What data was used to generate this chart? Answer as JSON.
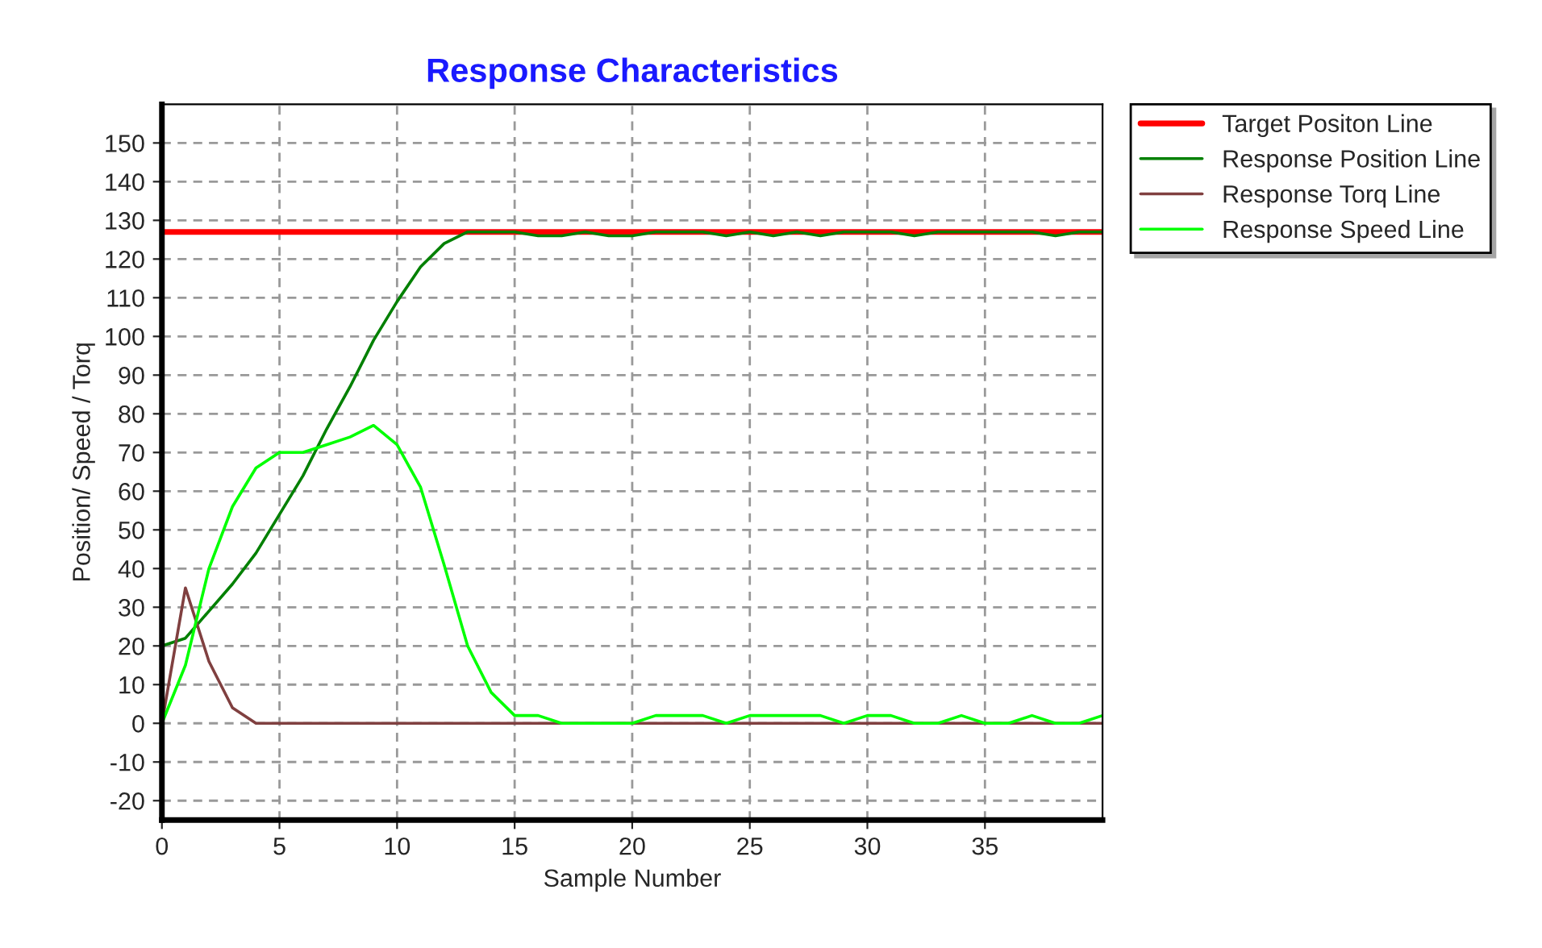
{
  "chart_data": {
    "type": "line",
    "title": "Response Characteristics",
    "xlabel": "Sample Number",
    "ylabel": "Position/ Speed / Torq",
    "xlim": [
      0,
      40
    ],
    "xticks": [
      0,
      5,
      10,
      15,
      20,
      25,
      30,
      35
    ],
    "ylim": [
      -25,
      160
    ],
    "yticks": [
      -20,
      -10,
      0,
      10,
      20,
      30,
      40,
      50,
      60,
      70,
      80,
      90,
      100,
      110,
      120,
      130,
      140,
      150
    ],
    "grid": true,
    "legend": "top right",
    "marker": "none",
    "line_style": "solid",
    "series": [
      {
        "name": "Target Positon Line",
        "color": "#ff0000",
        "x": [
          0,
          40
        ],
        "values": [
          127,
          127
        ]
      },
      {
        "name": "Response Position Line",
        "color": "#008000",
        "x": [
          0,
          1,
          2,
          3,
          4,
          5,
          6,
          7,
          8,
          9,
          10,
          11,
          12,
          13,
          14,
          15,
          16,
          17,
          18,
          19,
          20,
          21,
          22,
          23,
          24,
          25,
          26,
          27,
          28,
          29,
          30,
          31,
          32,
          33,
          34,
          35,
          36,
          37,
          38,
          39,
          40
        ],
        "values": [
          20,
          22,
          29,
          36,
          44,
          54,
          64,
          76,
          87,
          99,
          109,
          118,
          124,
          127,
          127,
          127,
          126,
          126,
          127,
          126,
          126,
          127,
          127,
          127,
          126,
          127,
          126,
          127,
          126,
          127,
          127,
          127,
          126,
          127,
          127,
          127,
          127,
          127,
          126,
          127,
          127
        ]
      },
      {
        "name": "Response Torq Line",
        "color": "#804040",
        "x": [
          0,
          1,
          2,
          3,
          4,
          5,
          10,
          20,
          30,
          40
        ],
        "values": [
          0,
          35,
          16,
          4,
          0,
          0,
          0,
          0,
          0,
          0
        ]
      },
      {
        "name": "Response Speed Line",
        "color": "#00ff00",
        "x": [
          0,
          1,
          2,
          3,
          4,
          5,
          6,
          7,
          8,
          9,
          10,
          11,
          12,
          13,
          14,
          15,
          16,
          17,
          18,
          19,
          20,
          21,
          22,
          23,
          24,
          25,
          26,
          27,
          28,
          29,
          30,
          31,
          32,
          33,
          34,
          35,
          36,
          37,
          38,
          39,
          40
        ],
        "values": [
          0,
          15,
          40,
          56,
          66,
          70,
          70,
          72,
          74,
          77,
          72,
          61,
          41,
          20,
          8,
          2,
          2,
          0,
          0,
          0,
          0,
          2,
          2,
          2,
          0,
          2,
          2,
          2,
          2,
          0,
          2,
          2,
          0,
          0,
          2,
          0,
          0,
          2,
          0,
          0,
          2
        ]
      }
    ]
  }
}
